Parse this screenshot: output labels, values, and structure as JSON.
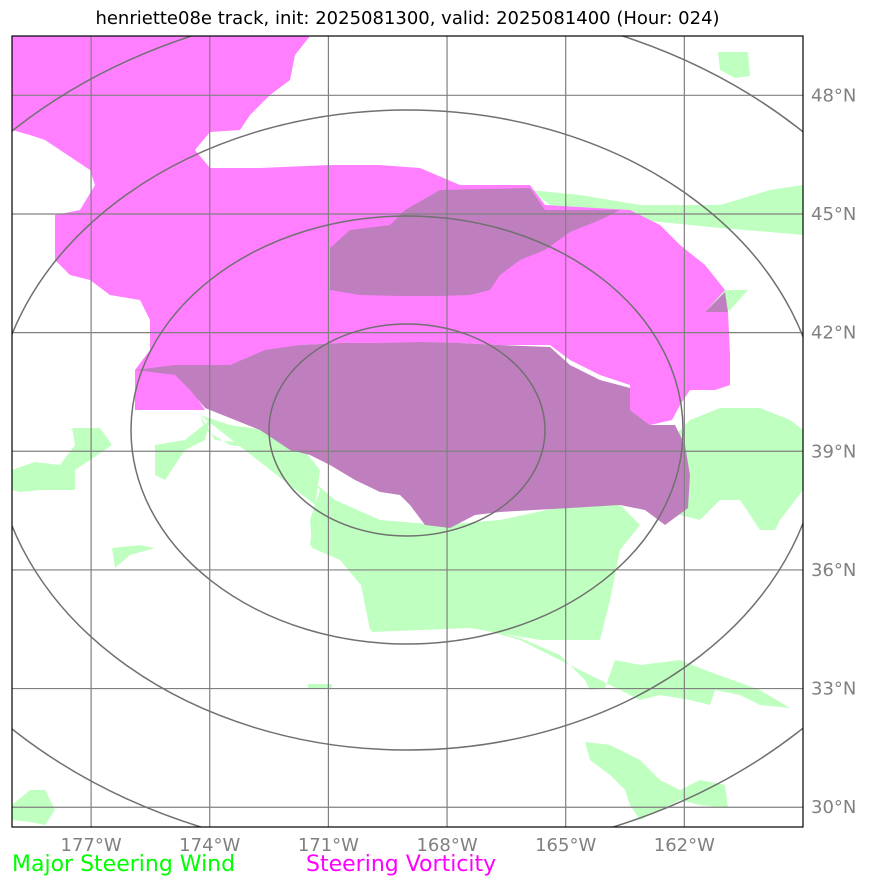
{
  "title": "henriette08e track, init: 2025081300, valid: 2025081400 (Hour: 024)",
  "map": {
    "lon_ticks": [
      "177°W",
      "174°W",
      "171°W",
      "168°W",
      "165°W",
      "162°W"
    ],
    "lat_ticks": [
      "48°N",
      "45°N",
      "42°N",
      "39°N",
      "36°N",
      "33°N",
      "30°N"
    ],
    "lon_range": [
      -179,
      -159
    ],
    "lat_range": [
      29.5,
      49.5
    ],
    "range_rings_count": 4,
    "colors": {
      "steering_wind": "#bfffbf",
      "steering_vorticity": "#ff7fff",
      "overlap": "#bf7fbf",
      "grid": "#808080",
      "ring": "#707070"
    }
  },
  "legend": {
    "wind": {
      "label": "Major Steering Wind",
      "color": "#00ff00"
    },
    "vorticity": {
      "label": "Steering Vorticity",
      "color": "#ff00ff"
    }
  }
}
